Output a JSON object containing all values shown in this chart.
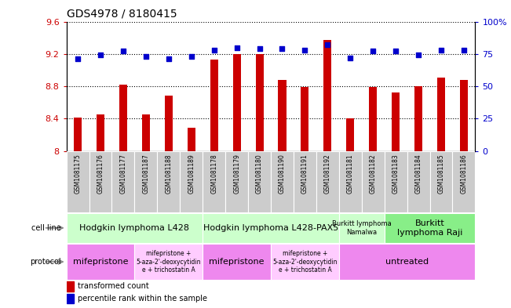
{
  "title": "GDS4978 / 8180415",
  "samples": [
    "GSM1081175",
    "GSM1081176",
    "GSM1081177",
    "GSM1081187",
    "GSM1081188",
    "GSM1081189",
    "GSM1081178",
    "GSM1081179",
    "GSM1081180",
    "GSM1081190",
    "GSM1081191",
    "GSM1081192",
    "GSM1081181",
    "GSM1081182",
    "GSM1081183",
    "GSM1081184",
    "GSM1081185",
    "GSM1081186"
  ],
  "transformed_counts": [
    8.41,
    8.45,
    8.82,
    8.45,
    8.68,
    8.29,
    9.13,
    9.2,
    9.2,
    8.88,
    8.79,
    9.37,
    8.4,
    8.79,
    8.72,
    8.8,
    8.91,
    8.88
  ],
  "percentile_ranks": [
    71,
    74,
    77,
    73,
    71,
    73,
    78,
    80,
    79,
    79,
    78,
    82,
    72,
    77,
    77,
    74,
    78,
    78
  ],
  "ylim_left": [
    8.0,
    9.6
  ],
  "ylim_right": [
    0,
    100
  ],
  "yticks_left": [
    8.0,
    8.4,
    8.8,
    9.2,
    9.6
  ],
  "yticks_right": [
    0,
    25,
    50,
    75,
    100
  ],
  "ytick_labels_left": [
    "8",
    "8.4",
    "8.8",
    "9.2",
    "9.6"
  ],
  "ytick_labels_right": [
    "0",
    "25",
    "50",
    "75",
    "100%"
  ],
  "bar_color": "#cc0000",
  "dot_color": "#0000cc",
  "sample_box_color": "#cccccc",
  "cell_line_groups": [
    {
      "label": "Hodgkin lymphoma L428",
      "start": 0,
      "end": 6,
      "color": "#ccffcc",
      "fontsize": 8
    },
    {
      "label": "Hodgkin lymphoma L428-PAX5",
      "start": 6,
      "end": 12,
      "color": "#ccffcc",
      "fontsize": 8
    },
    {
      "label": "Burkitt lymphoma\nNamalwa",
      "start": 12,
      "end": 14,
      "color": "#ccffcc",
      "fontsize": 6
    },
    {
      "label": "Burkitt\nlymphoma Raji",
      "start": 14,
      "end": 18,
      "color": "#88ee88",
      "fontsize": 8
    }
  ],
  "protocol_groups": [
    {
      "label": "mifepristone",
      "start": 0,
      "end": 3,
      "color": "#ee88ee",
      "fontsize": 8
    },
    {
      "label": "mifepristone +\n5-aza-2'-deoxycytidin\ne + trichostatin A",
      "start": 3,
      "end": 6,
      "color": "#ffccff",
      "fontsize": 5.5
    },
    {
      "label": "mifepristone",
      "start": 6,
      "end": 9,
      "color": "#ee88ee",
      "fontsize": 8
    },
    {
      "label": "mifepristone +\n5-aza-2'-deoxycytidin\ne + trichostatin A",
      "start": 9,
      "end": 12,
      "color": "#ffccff",
      "fontsize": 5.5
    },
    {
      "label": "untreated",
      "start": 12,
      "end": 18,
      "color": "#ee88ee",
      "fontsize": 8
    }
  ],
  "legend_items": [
    {
      "label": "transformed count",
      "color": "#cc0000"
    },
    {
      "label": "percentile rank within the sample",
      "color": "#0000cc"
    }
  ]
}
